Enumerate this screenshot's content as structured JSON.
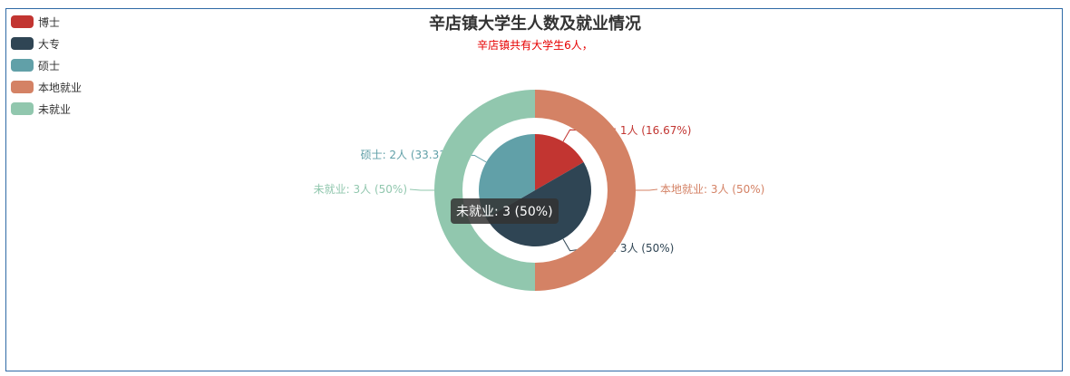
{
  "chart_data": {
    "type": "pie",
    "title": "辛店镇大学生人数及就业情况",
    "subtitle": "辛店镇共有大学生6人，",
    "legend": {
      "placement": "top-left",
      "items": [
        "博士",
        "大专",
        "硕士",
        "本地就业",
        "未就业"
      ]
    },
    "colors": {
      "博士": "#c23531",
      "大专": "#2f4554",
      "硕士": "#61a0a8",
      "本地就业": "#d48265",
      "未就业": "#91c7ae"
    },
    "series": [
      {
        "ring": "inner",
        "slices": [
          {
            "name": "博士",
            "value": 1,
            "label": "博士: 1人 (16.67%)"
          },
          {
            "name": "大专",
            "value": 3,
            "label": "大专: 3人 (50%)"
          },
          {
            "name": "硕士",
            "value": 2,
            "label": "硕士: 2人 (33.33%)"
          }
        ]
      },
      {
        "ring": "outer",
        "slices": [
          {
            "name": "本地就业",
            "value": 3,
            "label": "本地就业: 3人 (50%)"
          },
          {
            "name": "未就业",
            "value": 3,
            "label": "未就业: 3人 (50%)"
          }
        ]
      }
    ],
    "tooltip": "未就业: 3 (50%)"
  }
}
